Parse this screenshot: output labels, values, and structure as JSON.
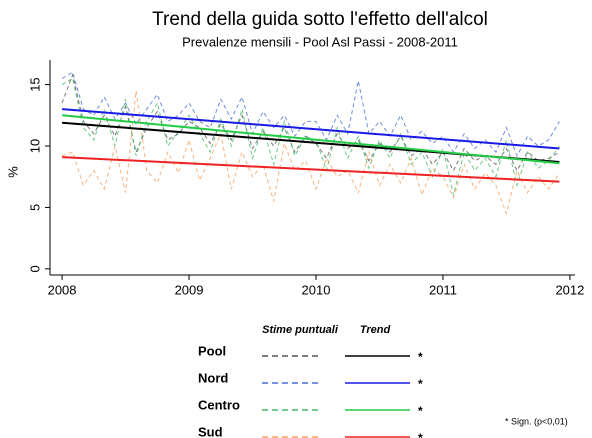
{
  "chart_data": {
    "type": "line",
    "title": "Trend della guida sotto l'effetto dell'alcol",
    "subtitle": "Prevalenze mensili - Pool Asl Passi - 2008-2011",
    "y_label": "%",
    "x": [
      2008,
      2008.083,
      2008.167,
      2008.25,
      2008.333,
      2008.417,
      2008.5,
      2008.583,
      2008.667,
      2008.75,
      2008.833,
      2008.917,
      2009,
      2009.083,
      2009.167,
      2009.25,
      2009.333,
      2009.417,
      2009.5,
      2009.583,
      2009.667,
      2009.75,
      2009.833,
      2009.917,
      2010,
      2010.083,
      2010.167,
      2010.25,
      2010.333,
      2010.417,
      2010.5,
      2010.583,
      2010.667,
      2010.75,
      2010.833,
      2010.917,
      2011,
      2011.083,
      2011.167,
      2011.25,
      2011.333,
      2011.417,
      2011.5,
      2011.583,
      2011.667,
      2011.75,
      2011.833,
      2011.917
    ],
    "trend_x": [
      2008,
      2011.917
    ],
    "xlim": [
      2007.905,
      2012.04
    ],
    "xticks": [
      2008,
      2009,
      2010,
      2011,
      2012
    ],
    "ylim": [
      -0.5,
      17
    ],
    "yticks": [
      0,
      5,
      10,
      15
    ],
    "legend_headers": [
      "Stime puntuali",
      "Trend"
    ],
    "note": "* Sign. (p<0,01)",
    "series": [
      {
        "name": "Pool",
        "color": "#000000",
        "dash_color": "#555555",
        "significance": "*",
        "trend": [
          11.9,
          8.7
        ],
        "values": [
          13.5,
          15.8,
          12.0,
          11.0,
          12.5,
          10.8,
          13.2,
          9.5,
          11.5,
          12.8,
          10.5,
          11.0,
          12.0,
          11.5,
          10.2,
          11.8,
          10.5,
          12.5,
          9.8,
          11.2,
          10.0,
          11.5,
          9.5,
          10.8,
          10.2,
          9.0,
          11.0,
          9.8,
          10.5,
          8.8,
          10.2,
          9.5,
          10.8,
          9.2,
          9.8,
          8.5,
          9.5,
          8.0,
          9.8,
          8.8,
          9.2,
          8.5,
          9.8,
          8.0,
          9.5,
          8.8,
          9.0,
          9.5
        ]
      },
      {
        "name": "Nord",
        "color": "#1a1ae6",
        "dash_color": "#4a6fd0",
        "significance": "*",
        "trend": [
          13.0,
          9.8
        ],
        "values": [
          15.5,
          16.0,
          13.0,
          12.5,
          14.0,
          12.2,
          13.5,
          11.8,
          13.0,
          14.2,
          12.0,
          12.5,
          13.5,
          12.0,
          11.5,
          13.8,
          12.2,
          14.0,
          11.0,
          12.8,
          11.5,
          12.5,
          10.8,
          12.0,
          12.0,
          10.5,
          12.5,
          11.0,
          15.3,
          11.0,
          12.0,
          10.8,
          12.5,
          10.5,
          11.2,
          10.2,
          10.8,
          9.5,
          11.0,
          9.8,
          10.5,
          9.5,
          11.5,
          9.2,
          10.8,
          10.0,
          10.5,
          12.0
        ]
      },
      {
        "name": "Centro",
        "color": "#22cc44",
        "dash_color": "#44bb66",
        "significance": "*",
        "trend": [
          12.5,
          8.6
        ],
        "values": [
          15.0,
          15.5,
          11.5,
          10.5,
          13.0,
          10.0,
          13.8,
          9.2,
          12.0,
          13.5,
          10.0,
          11.2,
          12.5,
          11.0,
          9.5,
          12.2,
          10.0,
          13.0,
          9.0,
          11.5,
          8.5,
          12.0,
          9.2,
          10.8,
          10.5,
          8.0,
          11.5,
          9.0,
          10.8,
          8.2,
          10.5,
          9.0,
          11.0,
          8.5,
          9.5,
          7.5,
          9.8,
          6.0,
          9.5,
          8.0,
          9.0,
          7.5,
          10.5,
          6.8,
          9.5,
          8.2,
          8.8,
          10.0
        ]
      },
      {
        "name": "Sud",
        "color": "#ee2222",
        "dash_color": "#f5a060",
        "significance": "*",
        "trend": [
          9.1,
          7.1
        ],
        "values": [
          9.2,
          9.5,
          6.8,
          8.0,
          6.5,
          10.0,
          6.2,
          14.5,
          8.0,
          7.0,
          9.5,
          7.8,
          10.5,
          7.2,
          9.0,
          11.0,
          6.5,
          9.5,
          7.5,
          8.5,
          5.5,
          10.2,
          8.0,
          8.8,
          6.5,
          9.0,
          7.5,
          8.0,
          6.2,
          9.5,
          6.8,
          8.5,
          7.0,
          9.0,
          6.0,
          8.2,
          7.5,
          5.8,
          8.5,
          6.5,
          7.8,
          6.8,
          4.5,
          8.0,
          6.2,
          7.5,
          6.5,
          7.8
        ]
      }
    ]
  }
}
